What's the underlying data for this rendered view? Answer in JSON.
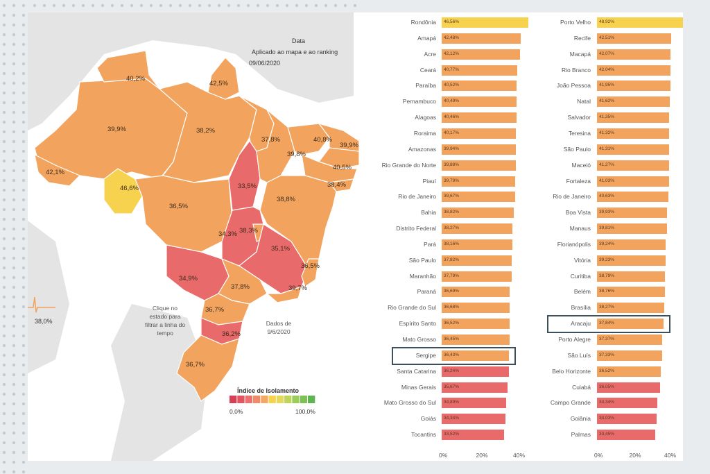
{
  "map": {
    "header_title": "Data",
    "header_subtitle": "Aplicado ao mapa e ao ranking",
    "header_date": "09/06/2020",
    "instruction": "Clique no estado para filtrar a linha do tempo",
    "data_note": "Dados de 9/6/2020",
    "spark_value": "38,0%",
    "state_labels": [
      "40,2%",
      "42,5%",
      "39,9%",
      "38,2%",
      "37,8%",
      "40,8%",
      "39,9%",
      "39,8%",
      "40,5%",
      "42,1%",
      "46,6%",
      "33,5%",
      "38,4%",
      "36,5%",
      "38,8%",
      "34,3%",
      "38,3%",
      "35,1%",
      "36,5%",
      "34,9%",
      "37,8%",
      "39,7%",
      "36,7%",
      "36,2%",
      "36,7%"
    ]
  },
  "legend": {
    "title": "Índice de Isolamento",
    "min": "0,0%",
    "max": "100,0%"
  },
  "colors": {
    "top": "#f6d24e",
    "mid": "#f2a35e",
    "low": "#e96a6a"
  },
  "ranking_states": {
    "items": [
      {
        "label": "Rondônia",
        "value_text": "46,56%",
        "value": 46.56,
        "tier": "top"
      },
      {
        "label": "Amapá",
        "value_text": "42,48%",
        "value": 42.48,
        "tier": "mid"
      },
      {
        "label": "Acre",
        "value_text": "42,12%",
        "value": 42.12,
        "tier": "mid"
      },
      {
        "label": "Ceará",
        "value_text": "40,77%",
        "value": 40.77,
        "tier": "mid"
      },
      {
        "label": "Paraíba",
        "value_text": "40,52%",
        "value": 40.52,
        "tier": "mid"
      },
      {
        "label": "Pernambuco",
        "value_text": "40,49%",
        "value": 40.49,
        "tier": "mid"
      },
      {
        "label": "Alagoas",
        "value_text": "40,46%",
        "value": 40.46,
        "tier": "mid"
      },
      {
        "label": "Roraima",
        "value_text": "40,17%",
        "value": 40.17,
        "tier": "mid"
      },
      {
        "label": "Amazonas",
        "value_text": "39,94%",
        "value": 39.94,
        "tier": "mid"
      },
      {
        "label": "Rio Grande do Norte",
        "value_text": "39,88%",
        "value": 39.88,
        "tier": "mid"
      },
      {
        "label": "Piauí",
        "value_text": "39,79%",
        "value": 39.79,
        "tier": "mid"
      },
      {
        "label": "Rio de Janeiro",
        "value_text": "39,67%",
        "value": 39.67,
        "tier": "mid"
      },
      {
        "label": "Bahia",
        "value_text": "38,82%",
        "value": 38.82,
        "tier": "mid"
      },
      {
        "label": "Distrito Federal",
        "value_text": "38,27%",
        "value": 38.27,
        "tier": "mid"
      },
      {
        "label": "Pará",
        "value_text": "38,16%",
        "value": 38.16,
        "tier": "mid"
      },
      {
        "label": "São Paulo",
        "value_text": "37,82%",
        "value": 37.82,
        "tier": "mid"
      },
      {
        "label": "Maranhão",
        "value_text": "37,79%",
        "value": 37.79,
        "tier": "mid"
      },
      {
        "label": "Paraná",
        "value_text": "36,69%",
        "value": 36.69,
        "tier": "mid"
      },
      {
        "label": "Rio Grande do Sul",
        "value_text": "36,68%",
        "value": 36.68,
        "tier": "mid"
      },
      {
        "label": "Espírito Santo",
        "value_text": "36,52%",
        "value": 36.52,
        "tier": "mid"
      },
      {
        "label": "Mato Grosso",
        "value_text": "36,45%",
        "value": 36.45,
        "tier": "mid"
      },
      {
        "label": "Sergipe",
        "value_text": "36,43%",
        "value": 36.43,
        "tier": "mid",
        "highlight": true
      },
      {
        "label": "Santa Catarina",
        "value_text": "36,24%",
        "value": 36.24,
        "tier": "low"
      },
      {
        "label": "Minas Gerais",
        "value_text": "35,67%",
        "value": 35.67,
        "tier": "low"
      },
      {
        "label": "Mato Grosso do Sul",
        "value_text": "34,89%",
        "value": 34.89,
        "tier": "low"
      },
      {
        "label": "Goiás",
        "value_text": "34,34%",
        "value": 34.34,
        "tier": "low"
      },
      {
        "label": "Tocantins",
        "value_text": "33,52%",
        "value": 33.52,
        "tier": "low"
      }
    ],
    "axis": [
      "0%",
      "20%",
      "40%"
    ]
  },
  "ranking_capitals": {
    "items": [
      {
        "label": "Porto Velho",
        "value_text": "48,92%",
        "value": 48.92,
        "tier": "top"
      },
      {
        "label": "Recife",
        "value_text": "42,51%",
        "value": 42.51,
        "tier": "mid"
      },
      {
        "label": "Macapá",
        "value_text": "42,07%",
        "value": 42.07,
        "tier": "mid"
      },
      {
        "label": "Rio Branco",
        "value_text": "42,04%",
        "value": 42.04,
        "tier": "mid"
      },
      {
        "label": "João Pessoa",
        "value_text": "41,95%",
        "value": 41.95,
        "tier": "mid"
      },
      {
        "label": "Natal",
        "value_text": "41,62%",
        "value": 41.62,
        "tier": "mid"
      },
      {
        "label": "Salvador",
        "value_text": "41,35%",
        "value": 41.35,
        "tier": "mid"
      },
      {
        "label": "Teresina",
        "value_text": "41,32%",
        "value": 41.32,
        "tier": "mid"
      },
      {
        "label": "São Paulo",
        "value_text": "41,31%",
        "value": 41.31,
        "tier": "mid"
      },
      {
        "label": "Maceió",
        "value_text": "41,27%",
        "value": 41.27,
        "tier": "mid"
      },
      {
        "label": "Fortaleza",
        "value_text": "41,03%",
        "value": 41.03,
        "tier": "mid"
      },
      {
        "label": "Rio de Janeiro",
        "value_text": "40,63%",
        "value": 40.63,
        "tier": "mid"
      },
      {
        "label": "Boa Vista",
        "value_text": "39,93%",
        "value": 39.93,
        "tier": "mid"
      },
      {
        "label": "Manaus",
        "value_text": "39,81%",
        "value": 39.81,
        "tier": "mid"
      },
      {
        "label": "Florianópolis",
        "value_text": "39,24%",
        "value": 39.24,
        "tier": "mid"
      },
      {
        "label": "Vitória",
        "value_text": "39,23%",
        "value": 39.23,
        "tier": "mid"
      },
      {
        "label": "Curitiba",
        "value_text": "38,79%",
        "value": 38.79,
        "tier": "mid"
      },
      {
        "label": "Belém",
        "value_text": "38,76%",
        "value": 38.76,
        "tier": "mid"
      },
      {
        "label": "Brasília",
        "value_text": "38,27%",
        "value": 38.27,
        "tier": "mid"
      },
      {
        "label": "Aracaju",
        "value_text": "37,84%",
        "value": 37.84,
        "tier": "mid",
        "highlight": true
      },
      {
        "label": "Porto Alegre",
        "value_text": "37,37%",
        "value": 37.37,
        "tier": "mid"
      },
      {
        "label": "São Luís",
        "value_text": "37,33%",
        "value": 37.33,
        "tier": "mid"
      },
      {
        "label": "Belo Horizonte",
        "value_text": "36,52%",
        "value": 36.52,
        "tier": "mid"
      },
      {
        "label": "Cuiabá",
        "value_text": "36,05%",
        "value": 36.05,
        "tier": "low"
      },
      {
        "label": "Campo Grande",
        "value_text": "34,34%",
        "value": 34.34,
        "tier": "low"
      },
      {
        "label": "Goiânia",
        "value_text": "34,03%",
        "value": 34.03,
        "tier": "low"
      },
      {
        "label": "Palmas",
        "value_text": "33,45%",
        "value": 33.45,
        "tier": "low"
      }
    ],
    "axis": [
      "0%",
      "20%",
      "40%"
    ]
  }
}
